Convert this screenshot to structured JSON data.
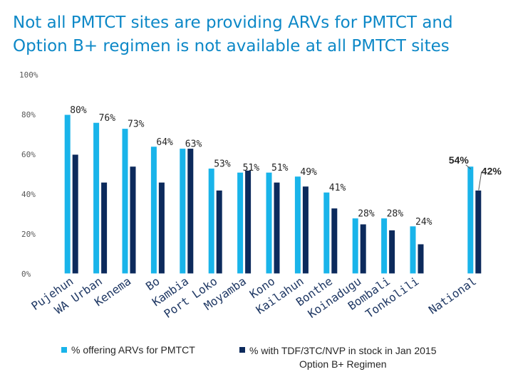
{
  "title": {
    "line1": "Not all PMTCT sites are providing ARVs for PMTCT and",
    "line2": "Option B+ regimen is not available at all PMTCT sites"
  },
  "chart_data": {
    "type": "bar",
    "categories": [
      "Pujehun",
      "WA Urban",
      "Kenema",
      "Bo",
      "Kambia",
      "Port Loko",
      "Moyamba",
      "Kono",
      "Kailahun",
      "Bonthe",
      "Koinadugu",
      "Bombali",
      "Tonkolili",
      "",
      "National"
    ],
    "series": [
      {
        "name": "% offering ARVs for PMTCT",
        "color": "#19b4ea",
        "values": [
          80,
          76,
          73,
          64,
          63,
          53,
          51,
          51,
          49,
          41,
          28,
          28,
          24,
          null,
          54
        ],
        "labels": [
          "80%",
          "76%",
          "73%",
          "64%",
          "63%",
          "53%",
          "51%",
          "51%",
          "49%",
          "41%",
          "28%",
          "28%",
          "24%",
          "",
          "54%"
        ]
      },
      {
        "name": "% with TDF/3TC/NVP in stock in Jan 2015",
        "color": "#0c2a5c",
        "values": [
          60,
          46,
          54,
          46,
          63,
          42,
          52,
          46,
          44,
          33,
          25,
          22,
          15,
          null,
          42
        ],
        "labels": [
          "",
          "",
          "",
          "",
          "",
          "",
          "",
          "",
          "",
          "",
          "",
          "",
          "",
          "",
          "42%"
        ]
      }
    ],
    "yticks": [
      "0%",
      "20%",
      "40%",
      "60%",
      "80%",
      "100%"
    ],
    "ylim": [
      0,
      100
    ],
    "grid": false,
    "legend_position": "bottom"
  },
  "legend": {
    "item1": "% offering ARVs for PMTCT",
    "item2_line1": "% with TDF/3TC/NVP in stock in Jan 2015",
    "item2_line2": "Option B+ Regimen"
  }
}
